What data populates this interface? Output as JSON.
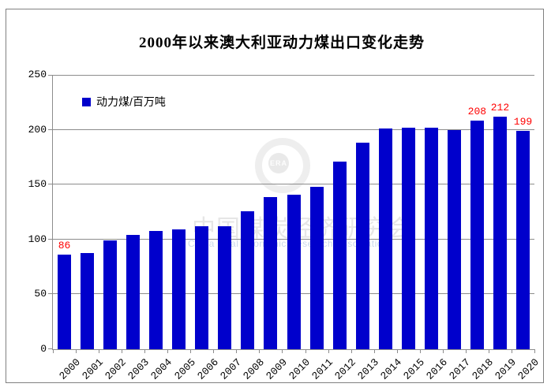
{
  "chart_data": {
    "type": "bar",
    "title": "2000年以来澳大利亚动力煤出口变化走势",
    "legend": "动力煤/百万吨",
    "legend_position": "top-left",
    "categories": [
      "2000",
      "2001",
      "2002",
      "2003",
      "2004",
      "2005",
      "2006",
      "2007",
      "2008",
      "2009",
      "2010",
      "2011",
      "2012",
      "2013",
      "2014",
      "2015",
      "2016",
      "2017",
      "2018",
      "2019",
      "2020"
    ],
    "values": [
      86,
      88,
      99,
      104,
      108,
      109,
      112,
      112,
      126,
      139,
      141,
      148,
      171,
      188,
      201,
      202,
      202,
      200,
      208,
      212,
      199
    ],
    "value_labels": {
      "2000": "86",
      "2018": "208",
      "2019": "212",
      "2020": "199"
    },
    "xlabel": "",
    "ylabel": "",
    "ylim": [
      0,
      250
    ],
    "yticks": [
      0,
      50,
      100,
      150,
      200,
      250
    ],
    "grid": true,
    "bar_color": "#0000CC",
    "value_label_color": "#FF0000",
    "gridline_color": "#8c8c8c"
  },
  "watermark": {
    "logo_text": "ERA",
    "cn_text": "中国煤炭经济研究会",
    "en_text": "China Coal Economic Research Association"
  }
}
